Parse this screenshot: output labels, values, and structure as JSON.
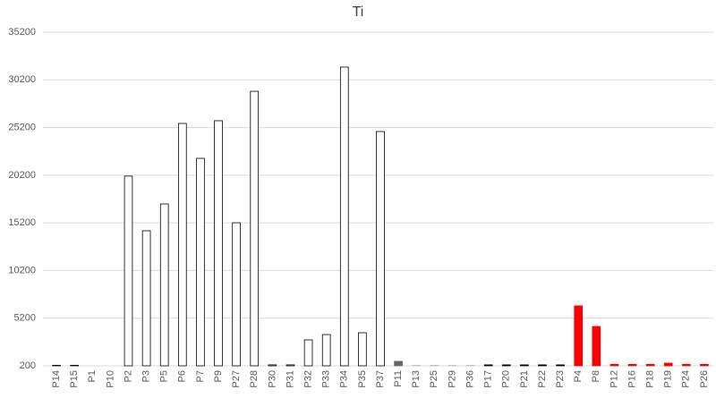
{
  "chart_data": {
    "type": "bar",
    "title": "Ti",
    "categories": [
      "P14",
      "P15",
      "P1",
      "P10",
      "P2",
      "P3",
      "P5",
      "P6",
      "P7",
      "P9",
      "P27",
      "P28",
      "P30",
      "P31",
      "P32",
      "P33",
      "P34",
      "P35",
      "P37",
      "P11",
      "P13",
      "P25",
      "P29",
      "P36",
      "P17",
      "P20",
      "P21",
      "P22",
      "P23",
      "P4",
      "P8",
      "P12",
      "P16",
      "P18",
      "P19",
      "P24",
      "P26"
    ],
    "values": [
      250,
      250,
      200,
      200,
      20100,
      14370,
      17180,
      25630,
      21970,
      25910,
      15210,
      29000,
      300,
      300,
      2920,
      3480,
      31540,
      3670,
      24780,
      670,
      250,
      250,
      250,
      250,
      300,
      300,
      300,
      300,
      300,
      6490,
      4330,
      350,
      350,
      350,
      480,
      350,
      350
    ],
    "colors": [
      "#ffffff",
      "#ffffff",
      "#ffffff",
      "#ffffff",
      "#ffffff",
      "#ffffff",
      "#ffffff",
      "#ffffff",
      "#ffffff",
      "#ffffff",
      "#ffffff",
      "#ffffff",
      "#ffffff",
      "#ffffff",
      "#ffffff",
      "#ffffff",
      "#ffffff",
      "#ffffff",
      "#ffffff",
      "#666666",
      "#bfbfbf",
      "#bfbfbf",
      "#bfbfbf",
      "#bfbfbf",
      "#000000",
      "#000000",
      "#000000",
      "#000000",
      "#000000",
      "#ff0000",
      "#ff0000",
      "#ff0000",
      "#ff0000",
      "#ff0000",
      "#ff0000",
      "#ff0000",
      "#ff0000"
    ],
    "ylim": [
      200,
      35200
    ],
    "yticks": [
      200,
      5200,
      10200,
      15200,
      20200,
      25200,
      30200,
      35200
    ],
    "grid": true
  }
}
